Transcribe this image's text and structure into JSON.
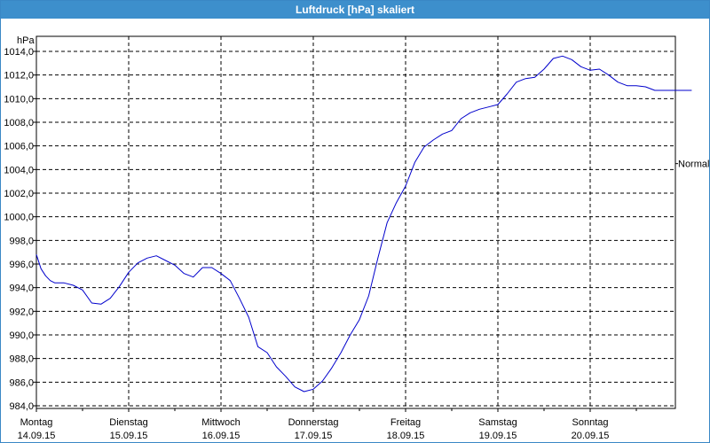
{
  "window": {
    "title": "Luftdruck [hPa] skaliert"
  },
  "chart_data": {
    "type": "line",
    "title": "Luftdruck [hPa] skaliert",
    "ylabel": "hPa",
    "ylim": [
      984,
      1015
    ],
    "y_ticks": [
      "984,0",
      "986,0",
      "988,0",
      "990,0",
      "992,0",
      "994,0",
      "996,0",
      "998,0",
      "1000,0",
      "1002,0",
      "1004,0",
      "1006,0",
      "1008,0",
      "1010,0",
      "1012,0",
      "1014,0"
    ],
    "x_ticks": [
      {
        "day": "Montag",
        "date": "14.09.15"
      },
      {
        "day": "Dienstag",
        "date": "15.09.15"
      },
      {
        "day": "Mittwoch",
        "date": "16.09.15"
      },
      {
        "day": "Donnerstag",
        "date": "17.09.15"
      },
      {
        "day": "Freitag",
        "date": "18.09.15"
      },
      {
        "day": "Samstag",
        "date": "19.09.15"
      },
      {
        "day": "Sonntag",
        "date": "20.09.15"
      }
    ],
    "grid": true,
    "series": [
      {
        "color": "#0000cc",
        "x_days": [
          0,
          0.05,
          0.1,
          0.15,
          0.2,
          0.3,
          0.4,
          0.5,
          0.6,
          0.7,
          0.8,
          0.9,
          1.0,
          1.1,
          1.2,
          1.3,
          1.4,
          1.5,
          1.6,
          1.7,
          1.8,
          1.9,
          2.0,
          2.1,
          2.2,
          2.3,
          2.4,
          2.5,
          2.6,
          2.7,
          2.8,
          2.9,
          3.0,
          3.1,
          3.2,
          3.3,
          3.4,
          3.5,
          3.6,
          3.7,
          3.8,
          3.9,
          4.0,
          4.1,
          4.2,
          4.3,
          4.4,
          4.5,
          4.6,
          4.7,
          4.8,
          4.9,
          5.0,
          5.1,
          5.2,
          5.3,
          5.4,
          5.5,
          5.6,
          5.7,
          5.8,
          5.9,
          6.0,
          6.1,
          6.2,
          6.3,
          6.4,
          6.5,
          6.6,
          6.7,
          6.8,
          6.9,
          7.0,
          7.1
        ],
        "values": [
          996.8,
          995.6,
          995.0,
          994.6,
          994.4,
          994.4,
          994.2,
          993.8,
          992.7,
          992.6,
          993.1,
          994.1,
          995.3,
          996.1,
          996.5,
          996.7,
          996.3,
          995.9,
          995.2,
          994.9,
          995.7,
          995.7,
          995.2,
          994.6,
          993.1,
          991.5,
          989.0,
          988.5,
          987.3,
          986.5,
          985.6,
          985.2,
          985.4,
          986.1,
          987.2,
          988.5,
          990.0,
          991.3,
          993.3,
          996.5,
          999.5,
          1001.2,
          1002.6,
          1004.6,
          1005.9,
          1006.5,
          1007.0,
          1007.3,
          1008.3,
          1008.8,
          1009.1,
          1009.3,
          1009.5,
          1010.4,
          1011.4,
          1011.7,
          1011.8,
          1012.5,
          1013.4,
          1013.6,
          1013.3,
          1012.7,
          1012.4,
          1012.5,
          1012.0,
          1011.4,
          1011.1,
          1011.1,
          1011.0,
          1010.7,
          1010.7,
          1010.7,
          1010.7,
          1010.7
        ]
      }
    ],
    "annotations": [
      {
        "text": "Normal",
        "y": 1004.5,
        "placement": "right"
      }
    ]
  }
}
